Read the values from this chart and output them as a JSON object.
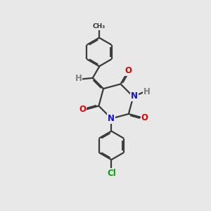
{
  "background_color": "#e8e8e8",
  "bond_color": "#3a3a3a",
  "bond_width": 1.6,
  "dbo": 0.055,
  "atom_colors": {
    "O": "#e00000",
    "N": "#1010e0",
    "Cl": "#00a000",
    "H": "#808080"
  },
  "font_size": 8.5,
  "figsize": [
    3.0,
    3.0
  ],
  "dpi": 100
}
